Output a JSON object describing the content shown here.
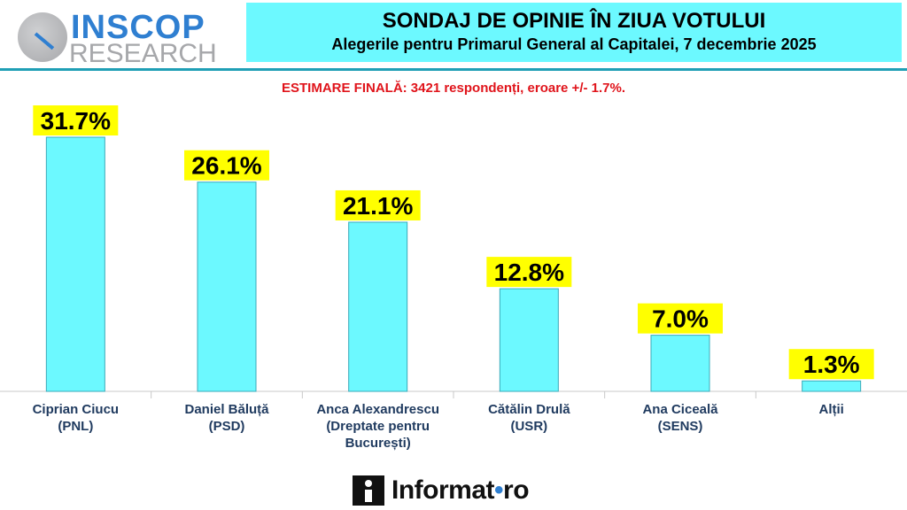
{
  "logo": {
    "name": "INSCOP",
    "sub": "RESEARCH"
  },
  "header": {
    "title": "SONDAJ DE OPINIE ÎN ZIUA VOTULUI",
    "subtitle": "Alegerile pentru Primarul General al Capitalei, 7 decembrie 2025"
  },
  "note": "ESTIMARE FINALĂ: 3421 respondenți, eroare +/- 1.7%.",
  "footer": {
    "brand_main": "Informat",
    "brand_dot": "•",
    "brand_tld": "ro"
  },
  "colors": {
    "bar": "#6cf9ff",
    "bar_stroke": "#3aaab8",
    "label_bg": "#ffff00",
    "title_bg": "#6cf9ff",
    "note": "#e0141b",
    "accent": "#2f7fd1"
  },
  "chart_data": {
    "type": "bar",
    "categories": [
      [
        "Ciprian Ciucu",
        "(PNL)"
      ],
      [
        "Daniel Băluță",
        "(PSD)"
      ],
      [
        "Anca Alexandrescu",
        "(Dreptate pentru",
        "București)"
      ],
      [
        "Cătălin Drulă",
        "(USR)"
      ],
      [
        "Ana Ciceală",
        "(SENS)"
      ],
      [
        "Alții"
      ]
    ],
    "values": [
      31.7,
      26.1,
      21.1,
      12.8,
      7.0,
      1.3
    ],
    "value_labels": [
      "31.7%",
      "26.1%",
      "21.1%",
      "12.8%",
      "7.0%",
      "1.3%"
    ],
    "ylim": [
      0,
      31.7
    ],
    "grid": false,
    "legend": "none"
  }
}
